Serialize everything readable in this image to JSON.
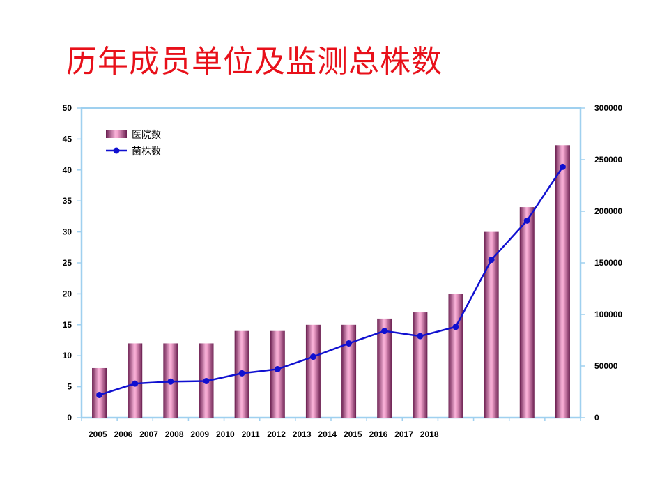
{
  "slide": {
    "title": "历年成员单位及监测总株数"
  },
  "chart_data": {
    "type": "bar",
    "title": "",
    "xlabel": "",
    "ylabel": "",
    "x_tick_labels": [
      "2005",
      "2006",
      "2007",
      "2008",
      "2009",
      "2010",
      "2011",
      "2012",
      "2013",
      "2014",
      "2015",
      "2016",
      "2017",
      "2018"
    ],
    "ylim": [
      0,
      50
    ],
    "y_ticks": [
      0,
      5,
      10,
      15,
      20,
      25,
      30,
      35,
      40,
      45,
      50
    ],
    "y2lim": [
      0,
      300000
    ],
    "y2_ticks": [
      0,
      50000,
      100000,
      150000,
      200000,
      250000,
      300000
    ],
    "grid": false,
    "legend_position": "top-left",
    "series": [
      {
        "name": "医院数",
        "type": "bar",
        "axis": "left",
        "color": "#e060a0",
        "values": [
          8,
          12,
          12,
          12,
          14,
          14,
          15,
          15,
          16,
          17,
          20,
          30,
          34,
          44
        ]
      },
      {
        "name": "菌株数",
        "type": "line",
        "axis": "right",
        "color": "#1010d0",
        "values": [
          22000,
          33000,
          35000,
          35500,
          43000,
          47000,
          59000,
          72000,
          84000,
          79000,
          88000,
          153000,
          191000,
          243000
        ]
      }
    ]
  }
}
